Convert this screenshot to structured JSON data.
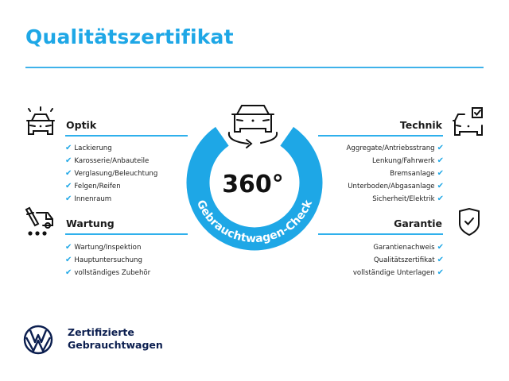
{
  "title": "Qualitätszertifikat",
  "colors": {
    "accent": "#1ea7e6",
    "brand_navy": "#0b1e4f"
  },
  "check_symbol": "✔",
  "center": {
    "value": "360°",
    "ring_text": "Gebrauchtwagen-Check",
    "icon": "car-rotate-icon"
  },
  "sections": {
    "optik": {
      "title": "Optik",
      "icon": "car-lights-icon",
      "items": [
        "Lackierung",
        "Karosserie/Anbauteile",
        "Verglasung/Beleuchtung",
        "Felgen/Reifen",
        "Innenraum"
      ]
    },
    "wartung": {
      "title": "Wartung",
      "icon": "service-tools-icon",
      "items": [
        "Wartung/Inspektion",
        "Hauptuntersuchung",
        "vollständiges Zubehör"
      ]
    },
    "technik": {
      "title": "Technik",
      "icon": "car-checklist-icon",
      "items": [
        "Aggregate/Antriebsstrang",
        "Lenkung/Fahrwerk",
        "Bremsanlage",
        "Unterboden/Abgasanlage",
        "Sicherheit/Elektrik"
      ]
    },
    "garantie": {
      "title": "Garantie",
      "icon": "shield-check-icon",
      "items": [
        "Garantienachweis",
        "Qualitätszertifikat",
        "vollständige Unterlagen"
      ]
    }
  },
  "footer": {
    "logo": "VW",
    "line1": "Zertifizierte",
    "line2": "Gebrauchtwagen"
  }
}
